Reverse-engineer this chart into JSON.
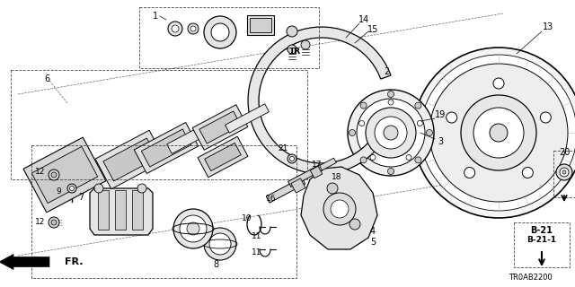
{
  "bg_color": "#ffffff",
  "diagram_code": "TR0AB2200",
  "b21_label": "B-21",
  "b211_label": "B-21-1",
  "fr_label": "FR.",
  "tr_label": "TR"
}
